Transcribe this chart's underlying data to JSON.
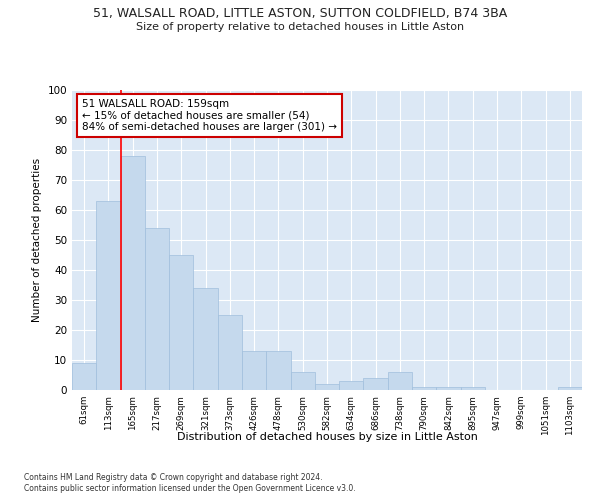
{
  "title": "51, WALSALL ROAD, LITTLE ASTON, SUTTON COLDFIELD, B74 3BA",
  "subtitle": "Size of property relative to detached houses in Little Aston",
  "xlabel": "Distribution of detached houses by size in Little Aston",
  "ylabel": "Number of detached properties",
  "categories": [
    "61sqm",
    "113sqm",
    "165sqm",
    "217sqm",
    "269sqm",
    "321sqm",
    "373sqm",
    "426sqm",
    "478sqm",
    "530sqm",
    "582sqm",
    "634sqm",
    "686sqm",
    "738sqm",
    "790sqm",
    "842sqm",
    "895sqm",
    "947sqm",
    "999sqm",
    "1051sqm",
    "1103sqm"
  ],
  "values": [
    9,
    63,
    78,
    54,
    45,
    34,
    25,
    13,
    13,
    6,
    2,
    3,
    4,
    6,
    1,
    1,
    1,
    0,
    0,
    0,
    1
  ],
  "bar_color": "#c5d9ed",
  "bar_edgecolor": "#a0bedc",
  "background_color": "#dce8f5",
  "plot_bg_color": "#dce8f5",
  "grid_color": "#ffffff",
  "red_line_x": 1.5,
  "annotation_text": "51 WALSALL ROAD: 159sqm\n← 15% of detached houses are smaller (54)\n84% of semi-detached houses are larger (301) →",
  "annotation_box_color": "#ffffff",
  "annotation_box_edgecolor": "#cc0000",
  "footnote1": "Contains HM Land Registry data © Crown copyright and database right 2024.",
  "footnote2": "Contains public sector information licensed under the Open Government Licence v3.0.",
  "ylim": [
    0,
    100
  ],
  "yticks": [
    0,
    10,
    20,
    30,
    40,
    50,
    60,
    70,
    80,
    90,
    100
  ]
}
